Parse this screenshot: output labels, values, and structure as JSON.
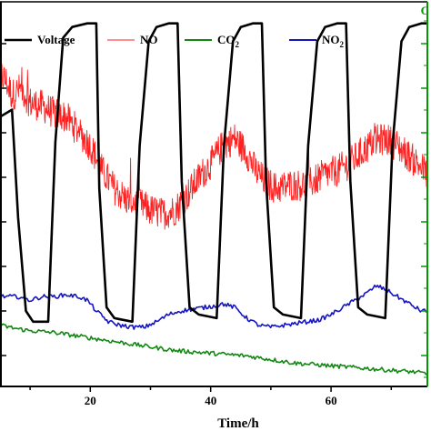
{
  "chart_data": {
    "type": "line",
    "title": "",
    "xlabel": "Time/h",
    "ylabel": "",
    "right_axis_label_fragment": "C",
    "xlim": [
      5,
      76
    ],
    "x_ticks": [
      20,
      40,
      60
    ],
    "grid": false,
    "legend": {
      "placement": "top",
      "entries": [
        {
          "name": "Voltage",
          "color": "#000000"
        },
        {
          "name": "NO",
          "color": "#ff2020"
        },
        {
          "name": "CO2",
          "label": "CO",
          "sub": "2",
          "color": "#118811"
        },
        {
          "name": "NO2",
          "label": "NO",
          "sub": "2",
          "color": "#1515c0"
        }
      ]
    },
    "series": [
      {
        "name": "Voltage",
        "color": "#000000",
        "points": [
          [
            5,
            0.7
          ],
          [
            7,
            0.72
          ],
          [
            8,
            0.42
          ],
          [
            9.3,
            0.16
          ],
          [
            10.5,
            0.13
          ],
          [
            13,
            0.13
          ],
          [
            14.2,
            0.63
          ],
          [
            15.5,
            0.92
          ],
          [
            17,
            0.95
          ],
          [
            19.5,
            0.96
          ],
          [
            21,
            0.96
          ],
          [
            21.5,
            0.5
          ],
          [
            22.7,
            0.17
          ],
          [
            24,
            0.14
          ],
          [
            27,
            0.13
          ],
          [
            28.2,
            0.62
          ],
          [
            29.7,
            0.91
          ],
          [
            31,
            0.95
          ],
          [
            33,
            0.96
          ],
          [
            34.5,
            0.96
          ],
          [
            35.2,
            0.52
          ],
          [
            36.5,
            0.17
          ],
          [
            38,
            0.15
          ],
          [
            41,
            0.14
          ],
          [
            42.2,
            0.62
          ],
          [
            43.7,
            0.91
          ],
          [
            45,
            0.95
          ],
          [
            47,
            0.96
          ],
          [
            48.5,
            0.96
          ],
          [
            49.2,
            0.52
          ],
          [
            50.5,
            0.17
          ],
          [
            52,
            0.15
          ],
          [
            55,
            0.14
          ],
          [
            56.2,
            0.62
          ],
          [
            57.7,
            0.91
          ],
          [
            59,
            0.95
          ],
          [
            61,
            0.96
          ],
          [
            62.5,
            0.96
          ],
          [
            63.2,
            0.52
          ],
          [
            64.5,
            0.17
          ],
          [
            66,
            0.15
          ],
          [
            69,
            0.14
          ],
          [
            70.2,
            0.62
          ],
          [
            71.7,
            0.91
          ],
          [
            73,
            0.95
          ],
          [
            75,
            0.96
          ],
          [
            76,
            0.96
          ]
        ]
      },
      {
        "name": "NO",
        "color": "#ff2020",
        "points": [
          [
            5,
            0.82
          ],
          [
            6,
            0.8
          ],
          [
            7,
            0.76
          ],
          [
            8.5,
            0.78
          ],
          [
            10,
            0.74
          ],
          [
            12,
            0.73
          ],
          [
            14,
            0.71
          ],
          [
            16,
            0.7
          ],
          [
            18,
            0.66
          ],
          [
            20,
            0.62
          ],
          [
            22,
            0.55
          ],
          [
            24,
            0.5
          ],
          [
            26,
            0.47
          ],
          [
            28,
            0.46
          ],
          [
            30,
            0.44
          ],
          [
            32,
            0.43
          ],
          [
            34,
            0.44
          ],
          [
            36,
            0.48
          ],
          [
            38,
            0.53
          ],
          [
            40,
            0.57
          ],
          [
            42,
            0.62
          ],
          [
            44,
            0.64
          ],
          [
            46,
            0.6
          ],
          [
            47.5,
            0.55
          ],
          [
            49,
            0.52
          ],
          [
            51,
            0.5
          ],
          [
            53,
            0.51
          ],
          [
            55,
            0.51
          ],
          [
            57,
            0.52
          ],
          [
            59,
            0.54
          ],
          [
            61,
            0.55
          ],
          [
            63,
            0.57
          ],
          [
            65,
            0.6
          ],
          [
            67,
            0.63
          ],
          [
            69,
            0.64
          ],
          [
            71,
            0.62
          ],
          [
            73,
            0.59
          ],
          [
            75,
            0.56
          ],
          [
            76,
            0.54
          ]
        ]
      },
      {
        "name": "CO2",
        "color": "#118811",
        "points": [
          [
            5,
            0.12
          ],
          [
            8,
            0.11
          ],
          [
            10,
            0.105
          ],
          [
            14,
            0.1
          ],
          [
            18,
            0.09
          ],
          [
            22,
            0.08
          ],
          [
            26,
            0.07
          ],
          [
            30,
            0.06
          ],
          [
            34,
            0.05
          ],
          [
            38,
            0.045
          ],
          [
            42,
            0.04
          ],
          [
            46,
            0.035
          ],
          [
            50,
            0.025
          ],
          [
            54,
            0.015
          ],
          [
            58,
            0.01
          ],
          [
            62,
            0.005
          ],
          [
            66,
            0.0
          ],
          [
            70,
            -0.005
          ],
          [
            74,
            -0.01
          ],
          [
            76,
            -0.015
          ]
        ]
      },
      {
        "name": "NO2",
        "color": "#1515c0",
        "points": [
          [
            5,
            0.2
          ],
          [
            8,
            0.2
          ],
          [
            10,
            0.19
          ],
          [
            12,
            0.2
          ],
          [
            14,
            0.2
          ],
          [
            16,
            0.205
          ],
          [
            18,
            0.2
          ],
          [
            19.5,
            0.19
          ],
          [
            21,
            0.16
          ],
          [
            23,
            0.13
          ],
          [
            25,
            0.12
          ],
          [
            27,
            0.115
          ],
          [
            29,
            0.115
          ],
          [
            31,
            0.13
          ],
          [
            33,
            0.15
          ],
          [
            35,
            0.16
          ],
          [
            37,
            0.165
          ],
          [
            39,
            0.17
          ],
          [
            41,
            0.175
          ],
          [
            42,
            0.18
          ],
          [
            44,
            0.17
          ],
          [
            46,
            0.14
          ],
          [
            48,
            0.12
          ],
          [
            50,
            0.115
          ],
          [
            52,
            0.12
          ],
          [
            54,
            0.125
          ],
          [
            56,
            0.13
          ],
          [
            58,
            0.135
          ],
          [
            60,
            0.15
          ],
          [
            62,
            0.17
          ],
          [
            64,
            0.19
          ],
          [
            66,
            0.21
          ],
          [
            67.5,
            0.23
          ],
          [
            69,
            0.22
          ],
          [
            71,
            0.2
          ],
          [
            73,
            0.18
          ],
          [
            75,
            0.16
          ],
          [
            76,
            0.16
          ]
        ]
      }
    ]
  }
}
